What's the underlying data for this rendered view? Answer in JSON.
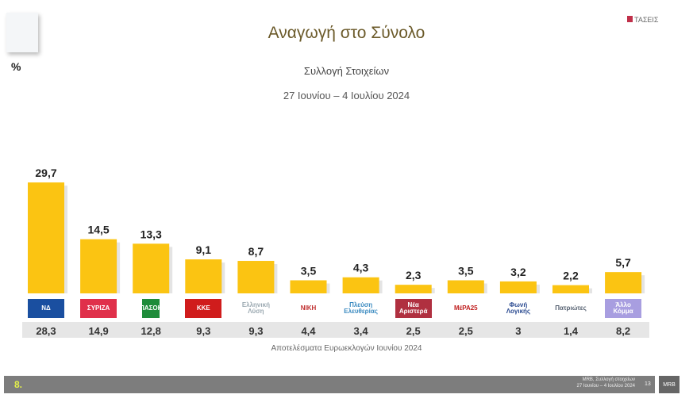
{
  "header": {
    "title": "Αναγωγή στο Σύνολο",
    "subtitle": "Συλλογή Στοιχείων",
    "dates": "27 Ιουνίου – 4 Ιουλίου 2024",
    "unit": "%",
    "brand": "ΤΑΣΕΙΣ"
  },
  "chart_data": {
    "type": "bar",
    "title": "Αναγωγή στο Σύνολο",
    "ylabel": "%",
    "categories": [
      "ΝΔ",
      "ΣΥΡΙΖΑ",
      "ΠΑΣΟΚ",
      "ΚΚΕ",
      "Ελληνική Λύση",
      "ΝΙΚΗ",
      "Πλεύση Ελευθερίας",
      "Νέα Αριστερά",
      "ΜέΡΑ25",
      "Φωνή Λογικής",
      "Πατριώτες",
      "Άλλο Κόμμα"
    ],
    "values": [
      29.7,
      14.5,
      13.3,
      9.1,
      8.7,
      3.5,
      4.3,
      2.3,
      3.5,
      3.2,
      2.2,
      5.7
    ],
    "value_labels": [
      "29,7",
      "14,5",
      "13,3",
      "9,1",
      "8,7",
      "3,5",
      "4,3",
      "2,3",
      "3,5",
      "3,2",
      "2,2",
      "5,7"
    ],
    "previous_label": "Αποτελέσματα Ευρωεκλογών Ιουνίου 2024",
    "previous_values": [
      "28,3",
      "14,9",
      "12,8",
      "9,3",
      "9,3",
      "4,4",
      "3,4",
      "2,5",
      "2,5",
      "3",
      "1,4",
      "8,2"
    ],
    "bar_color": "#fbc412",
    "logo_colors": [
      "#1a4fa0",
      "#e0304a",
      "#1e8c3a",
      "#d01c1c",
      "#9aa8b0",
      "#c03030",
      "#3a8ac0",
      "#b03040",
      "#c02020",
      "#2a4a90",
      "#556070",
      "#a89ee0"
    ],
    "grid": false
  },
  "footer": {
    "page": "8.",
    "source": "MRB, Συλλογή στοιχείων",
    "source_dates": "27 Ιουνίου – 4 Ιουλίου 2024",
    "slide": "13",
    "logo": "MRB"
  }
}
